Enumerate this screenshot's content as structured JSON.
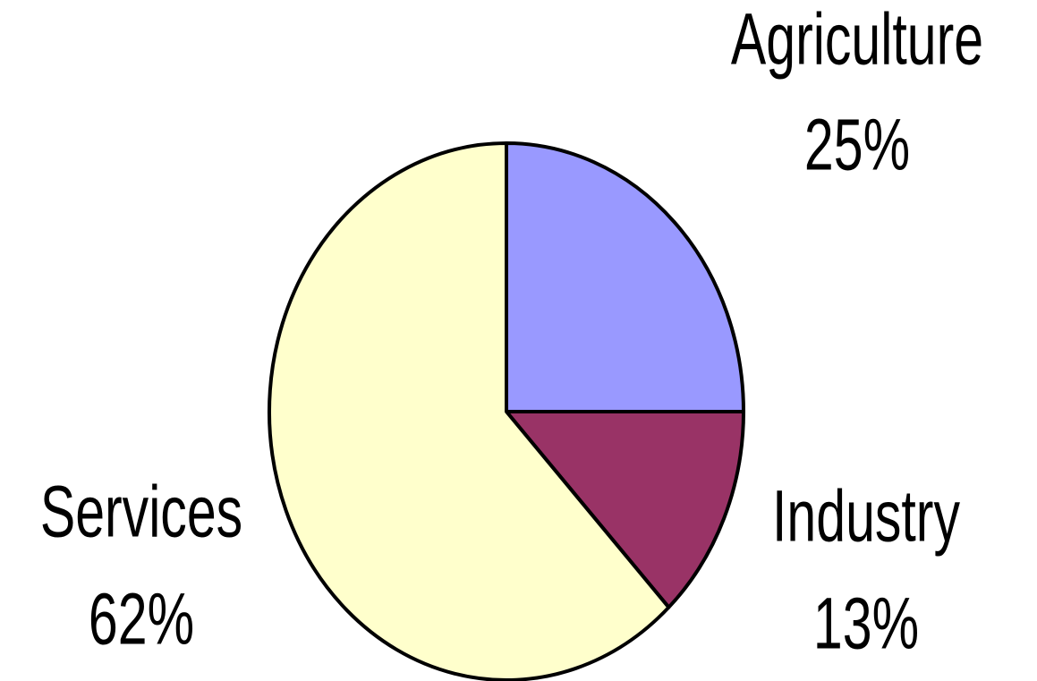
{
  "chart_data": {
    "type": "pie",
    "categories": [
      "Agriculture",
      "Industry",
      "Services"
    ],
    "values": [
      25,
      13,
      62
    ],
    "value_labels": [
      "25%",
      "13%",
      "62%"
    ],
    "colors": [
      "#9999ff",
      "#993366",
      "#ffffcc"
    ]
  }
}
